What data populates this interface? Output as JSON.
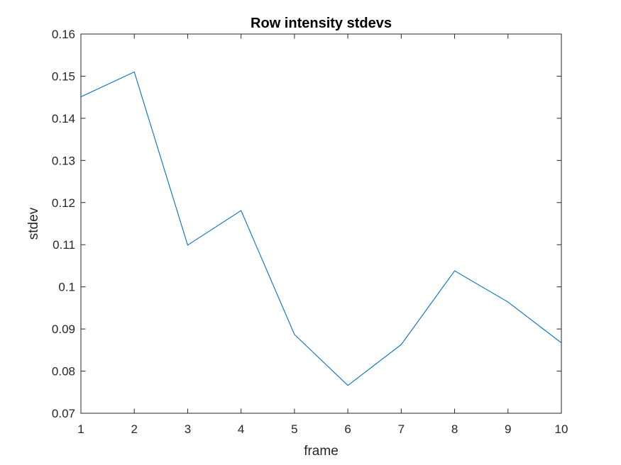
{
  "chart_data": {
    "type": "line",
    "title": "Row intensity stdevs",
    "xlabel": "frame",
    "ylabel": "stdev",
    "xlim": [
      1,
      10
    ],
    "ylim": [
      0.07,
      0.16
    ],
    "x_ticks": [
      1,
      2,
      3,
      4,
      5,
      6,
      7,
      8,
      9,
      10
    ],
    "x_tick_labels": [
      "1",
      "2",
      "3",
      "4",
      "5",
      "6",
      "7",
      "8",
      "9",
      "10"
    ],
    "y_ticks": [
      0.07,
      0.08,
      0.09,
      0.1,
      0.11,
      0.12,
      0.13,
      0.14,
      0.15,
      0.16
    ],
    "y_tick_labels": [
      "0.07",
      "0.08",
      "0.09",
      "0.1",
      "0.11",
      "0.12",
      "0.13",
      "0.14",
      "0.15",
      "0.16"
    ],
    "grid": false,
    "box": true,
    "series": [
      {
        "x": [
          1,
          2,
          3,
          4,
          5,
          6,
          7,
          8,
          9,
          10
        ],
        "values": [
          0.1451,
          0.151,
          0.1099,
          0.1181,
          0.0887,
          0.0766,
          0.0863,
          0.1038,
          0.0964,
          0.0867
        ],
        "color": "#0072BD"
      }
    ],
    "axis_color": "#262626"
  }
}
